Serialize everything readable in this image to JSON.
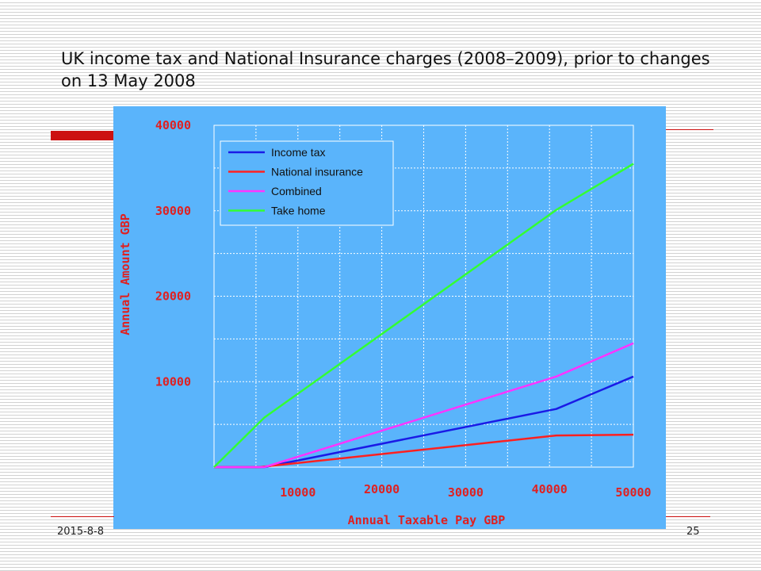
{
  "slide": {
    "title": "UK income tax and National Insurance charges (2008–2009), prior to changes on 13 May 2008",
    "footer_date": "2015-8-8",
    "page_number": "25"
  },
  "colors": {
    "panel_background": "#5ab4fb",
    "axis_text": "#e02020",
    "accent_red": "#cc1111",
    "grid": "#ffffff"
  },
  "chart_data": {
    "type": "line",
    "xlabel": "Annual Taxable Pay GBP",
    "ylabel": "Annual Amount GBP",
    "xlim": [
      0,
      50000
    ],
    "ylim": [
      0,
      40000
    ],
    "x_ticks": [
      10000,
      20000,
      30000,
      40000,
      50000
    ],
    "y_ticks": [
      10000,
      20000,
      30000,
      40000
    ],
    "grid": true,
    "legend_position": "top-left",
    "series": [
      {
        "name": "Income tax",
        "color": "#1a1ae6",
        "points": [
          [
            0,
            0
          ],
          [
            6000,
            0
          ],
          [
            40800,
            6800
          ],
          [
            50000,
            10600
          ]
        ]
      },
      {
        "name": "National insurance",
        "color": "#ff2020",
        "points": [
          [
            0,
            0
          ],
          [
            5400,
            0
          ],
          [
            40800,
            3700
          ],
          [
            50000,
            3800
          ]
        ]
      },
      {
        "name": "Combined",
        "color": "#ff33ff",
        "points": [
          [
            0,
            0
          ],
          [
            6000,
            0
          ],
          [
            40800,
            10600
          ],
          [
            50000,
            14500
          ]
        ]
      },
      {
        "name": "Take home",
        "color": "#33ff33",
        "points": [
          [
            0,
            0
          ],
          [
            6000,
            5800
          ],
          [
            40800,
            30100
          ],
          [
            50000,
            35500
          ]
        ]
      }
    ]
  }
}
